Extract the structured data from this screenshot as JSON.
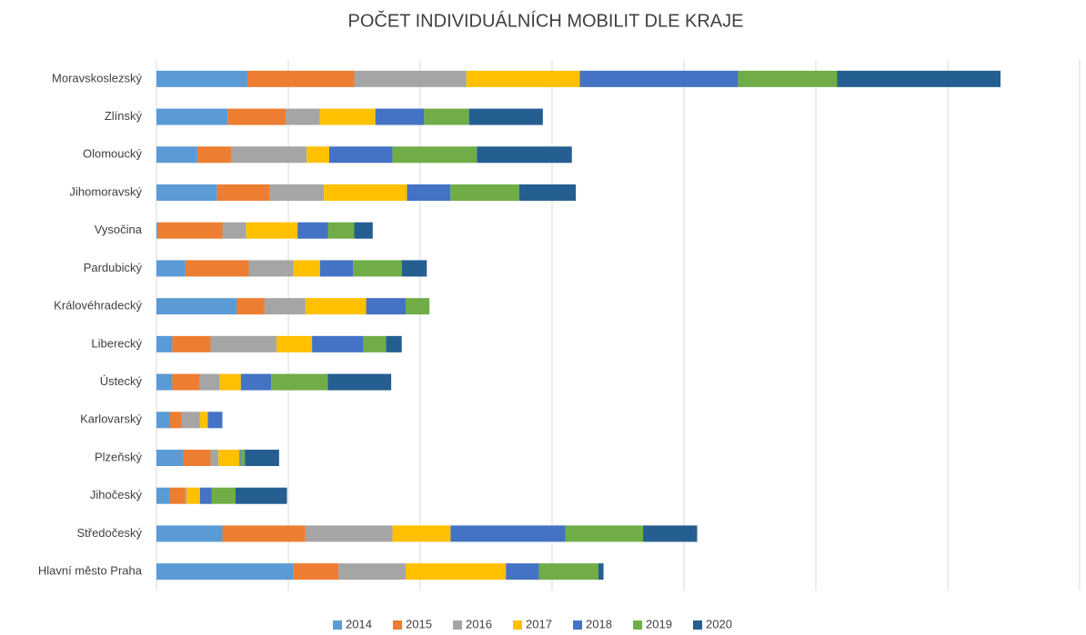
{
  "chart_data": {
    "type": "stacked_barh",
    "title": "POČET INDIVIDUÁLNÍCH MOBILIT DLE KRAJE",
    "categories": [
      "Moravskoslezský",
      "Zlínský",
      "Olomoucký",
      "Jihomoravský",
      "Vysočina",
      "Pardubický",
      "Královéhradecký",
      "Liberecký",
      "Ústecký",
      "Karlovarský",
      "Plzeňský",
      "Jihočeský",
      "Středočeský",
      "Hlavní město Praha"
    ],
    "series": [
      {
        "name": "2014",
        "color": "#5b9bd5",
        "values": [
          69,
          54,
          31,
          46,
          1,
          22,
          61,
          12,
          12,
          10,
          20,
          10,
          50,
          104
        ]
      },
      {
        "name": "2015",
        "color": "#ed7d31",
        "values": [
          81,
          44,
          26,
          40,
          49,
          48,
          21,
          29,
          21,
          9,
          21,
          12,
          63,
          34
        ]
      },
      {
        "name": "2016",
        "color": "#a5a5a5",
        "values": [
          85,
          26,
          57,
          41,
          18,
          34,
          31,
          50,
          15,
          14,
          6,
          1,
          66,
          51
        ]
      },
      {
        "name": "2017",
        "color": "#ffc000",
        "values": [
          86,
          42,
          17,
          63,
          39,
          20,
          46,
          27,
          16,
          6,
          16,
          10,
          44,
          76
        ]
      },
      {
        "name": "2018",
        "color": "#4472c4",
        "values": [
          120,
          37,
          48,
          33,
          23,
          25,
          30,
          39,
          23,
          11,
          1,
          9,
          87,
          25
        ]
      },
      {
        "name": "2019",
        "color": "#70ad47",
        "values": [
          75,
          34,
          64,
          52,
          20,
          37,
          18,
          17,
          43,
          0,
          3,
          18,
          59,
          45
        ]
      },
      {
        "name": "2020",
        "color": "#255e91",
        "values": [
          124,
          56,
          72,
          43,
          14,
          19,
          0,
          12,
          48,
          0,
          26,
          39,
          41,
          4
        ]
      }
    ],
    "xlim": [
      0,
      700
    ],
    "xticks": [
      0,
      100,
      200,
      300,
      400,
      500,
      600,
      700
    ],
    "grid": true,
    "legend": "bottom"
  }
}
